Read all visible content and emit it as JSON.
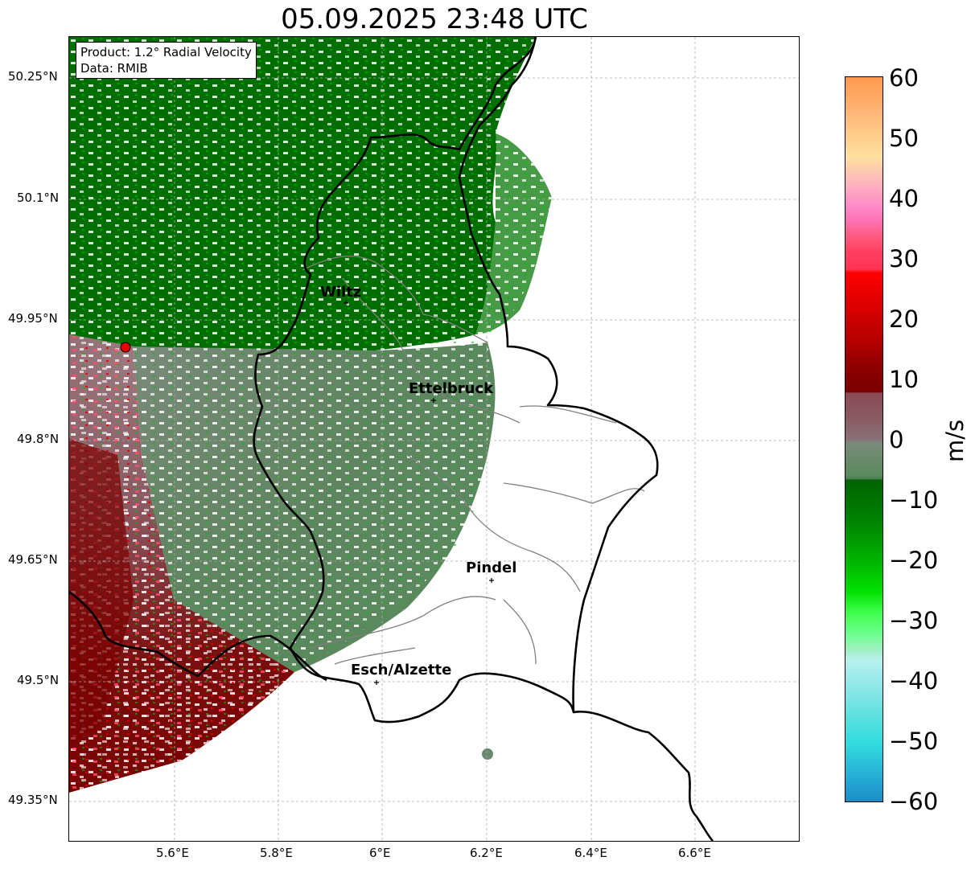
{
  "title": "05.09.2025 23:48 UTC",
  "info_box": {
    "product": "Product: 1.2° Radial Velocity",
    "data": "Data: RMIB"
  },
  "map": {
    "lon_ticks": [
      "5.6°E",
      "5.8°E",
      "6°E",
      "6.2°E",
      "6.4°E",
      "6.6°E"
    ],
    "lat_ticks": [
      "50.25°N",
      "50.1°N",
      "49.95°N",
      "49.8°N",
      "49.65°N",
      "49.5°N",
      "49.35°N"
    ],
    "cities": [
      {
        "name": "Wiltz"
      },
      {
        "name": "Ettelbruck"
      },
      {
        "name": "Pindel"
      },
      {
        "name": "Esch/Alzette"
      }
    ],
    "radar_site_color": "#e60000",
    "border_color": "#000000",
    "canton_color": "#808080",
    "gridlines": true
  },
  "colorbar": {
    "label": "m/s",
    "ticks": [
      "60",
      "50",
      "40",
      "30",
      "20",
      "10",
      "0",
      "−10",
      "−20",
      "−30",
      "−40",
      "−50",
      "−60"
    ],
    "range": [
      -60,
      60
    ],
    "colors": {
      "plus_60": "#ff9a50",
      "plus_50": "#ffd598",
      "plus_40": "#ff88c8",
      "plus_30": "#ff3355",
      "plus_20": "#e00000",
      "plus_10": "#7a0000",
      "plus_5": "#8a5a62",
      "zero": "#7a7a72",
      "minus_5": "#5a8a5e",
      "minus_10": "#006400",
      "minus_20": "#00b800",
      "minus_30": "#50ff70",
      "minus_40": "#b8f0f0",
      "minus_50": "#30dcdc",
      "minus_60": "#1e8cc8"
    }
  }
}
